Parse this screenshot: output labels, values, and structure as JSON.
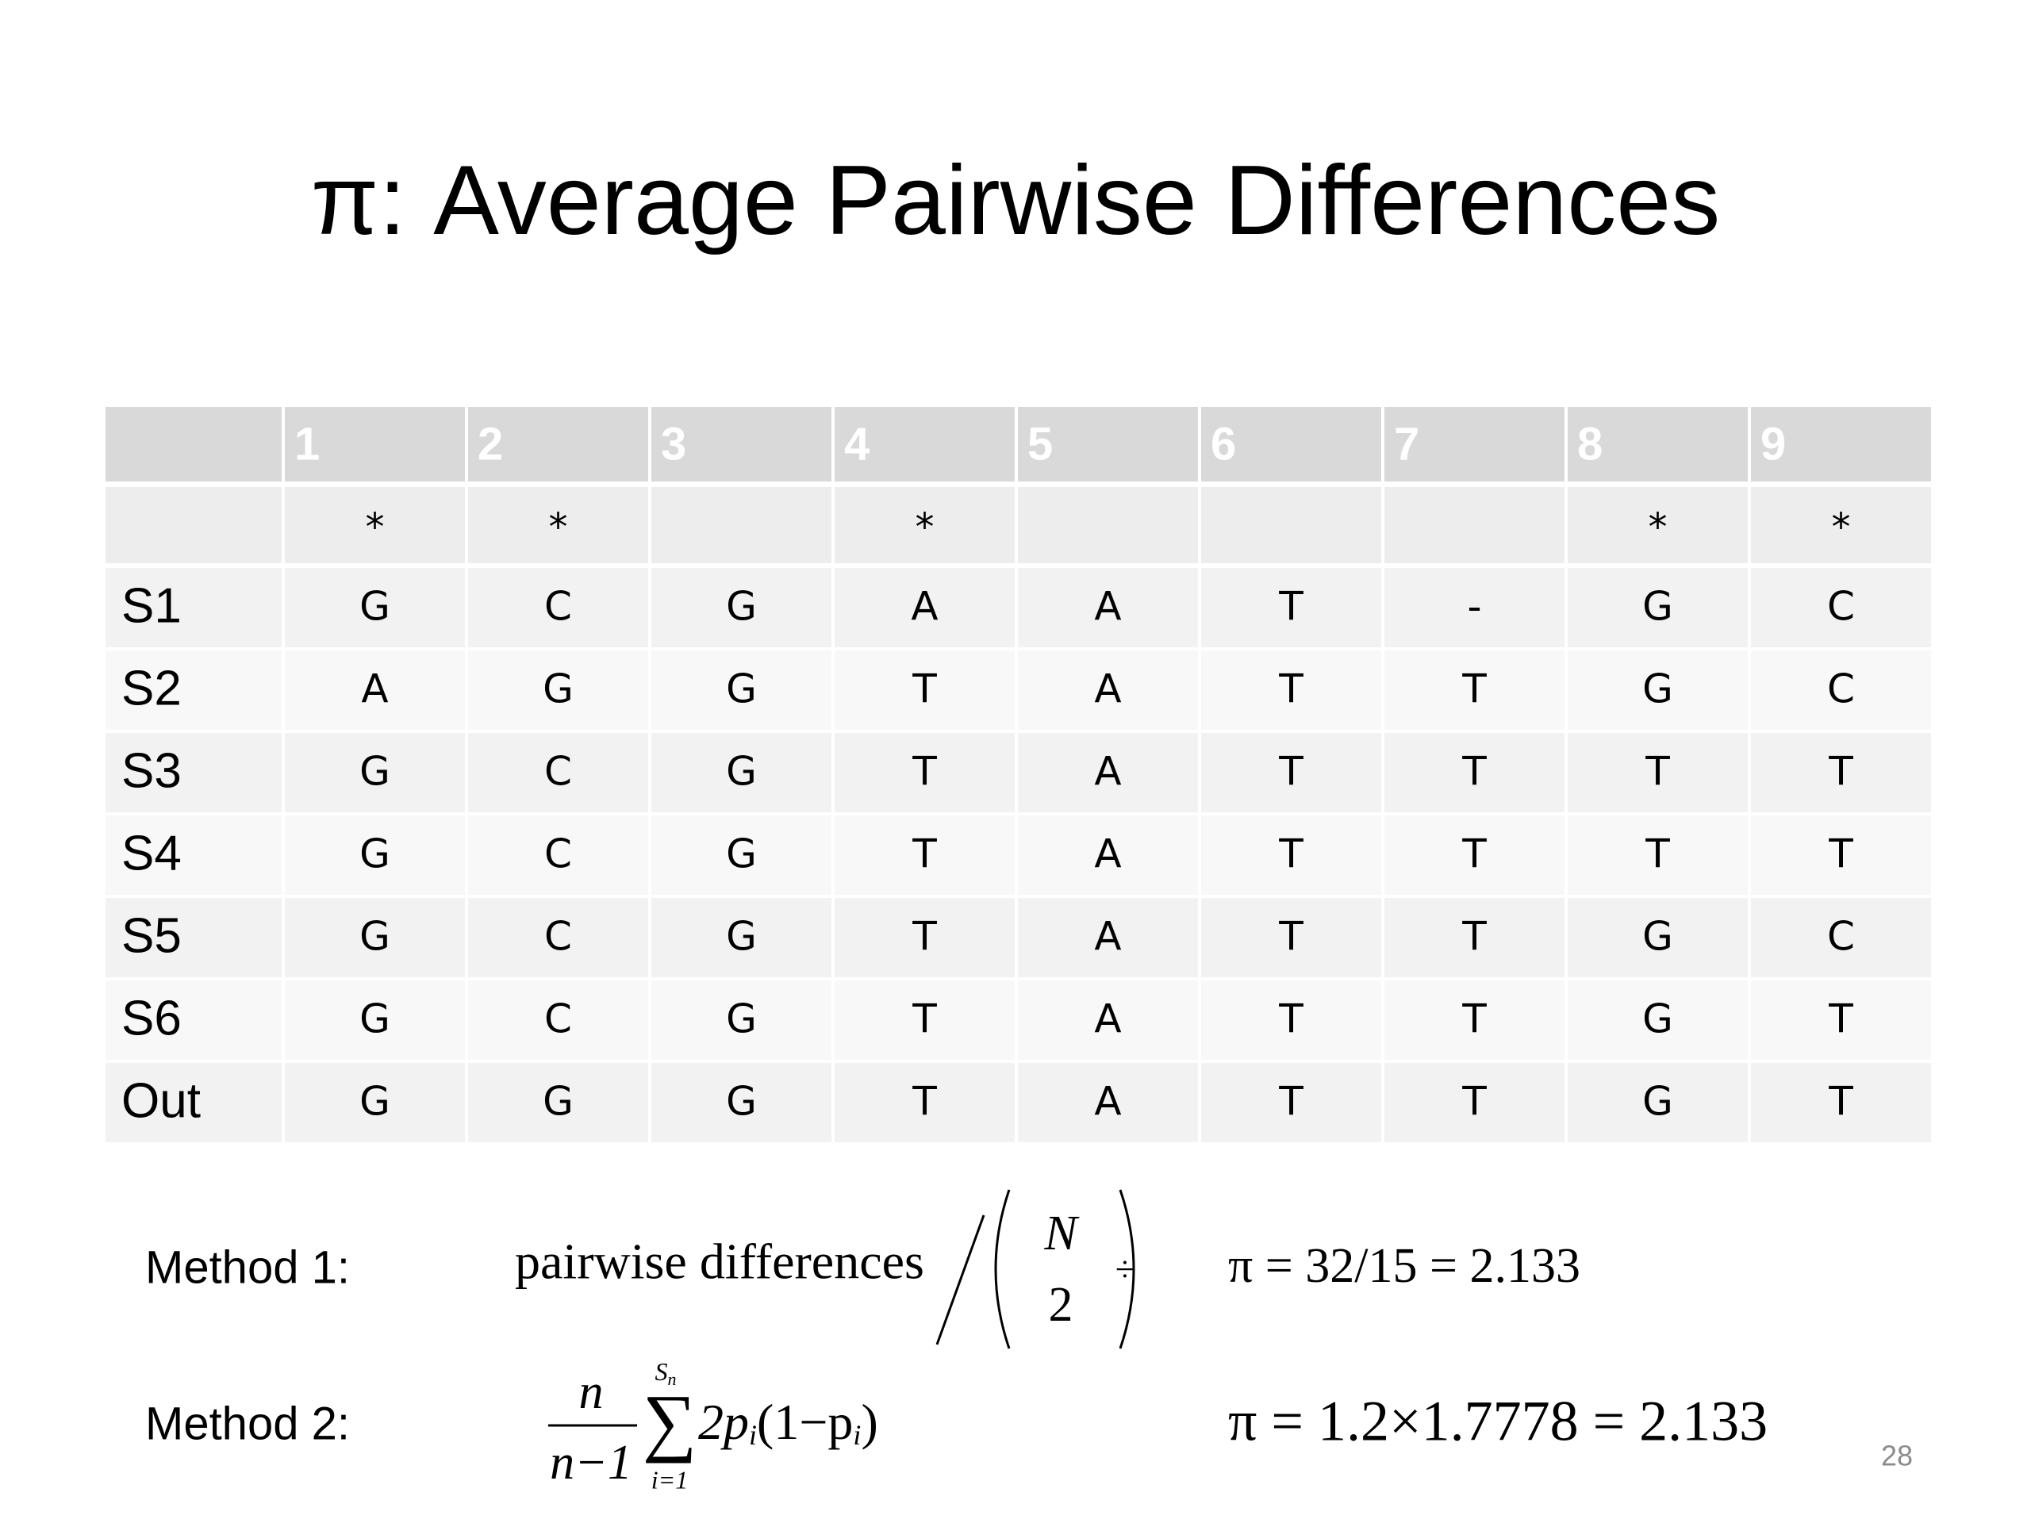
{
  "title": "π: Average Pairwise Differences",
  "table": {
    "columns": [
      "1",
      "2",
      "3",
      "4",
      "5",
      "6",
      "7",
      "8",
      "9"
    ],
    "markers": [
      "*",
      "*",
      null,
      "*",
      null,
      null,
      null,
      "*",
      "*"
    ],
    "rows": [
      {
        "label": "S1",
        "bases": [
          "G",
          "C",
          "G",
          "A",
          "A",
          "T",
          "-",
          "G",
          "C"
        ]
      },
      {
        "label": "S2",
        "bases": [
          "A",
          "G",
          "G",
          "T",
          "A",
          "T",
          "T",
          "G",
          "C"
        ]
      },
      {
        "label": "S3",
        "bases": [
          "G",
          "C",
          "G",
          "T",
          "A",
          "T",
          "T",
          "T",
          "T"
        ]
      },
      {
        "label": "S4",
        "bases": [
          "G",
          "C",
          "G",
          "T",
          "A",
          "T",
          "T",
          "T",
          "T"
        ]
      },
      {
        "label": "S5",
        "bases": [
          "G",
          "C",
          "G",
          "T",
          "A",
          "T",
          "T",
          "G",
          "C"
        ]
      },
      {
        "label": "S6",
        "bases": [
          "G",
          "C",
          "G",
          "T",
          "A",
          "T",
          "T",
          "G",
          "T"
        ]
      },
      {
        "label": "Out",
        "bases": [
          "G",
          "G",
          "G",
          "T",
          "A",
          "T",
          "T",
          "G",
          "T"
        ]
      }
    ]
  },
  "methods": [
    {
      "label": "Method 1:",
      "formula": {
        "text": "pairwise differences",
        "top": "N",
        "bottom": "2",
        "symbol": "÷"
      },
      "result": "π = 32/15 = 2.133"
    },
    {
      "label": "Method 2:",
      "formula": {
        "numerator": "n",
        "denominator": "n−1",
        "sum": "∑",
        "upper": "S",
        "upper_sub": "n",
        "lower": "i=1",
        "term_a": "2p",
        "sub_a": "i",
        "term_b": "(1−p",
        "sub_b": "i",
        "term_c": ")"
      },
      "result": "π = 1.2×1.7778 = 2.133"
    }
  ],
  "page_number": "28"
}
